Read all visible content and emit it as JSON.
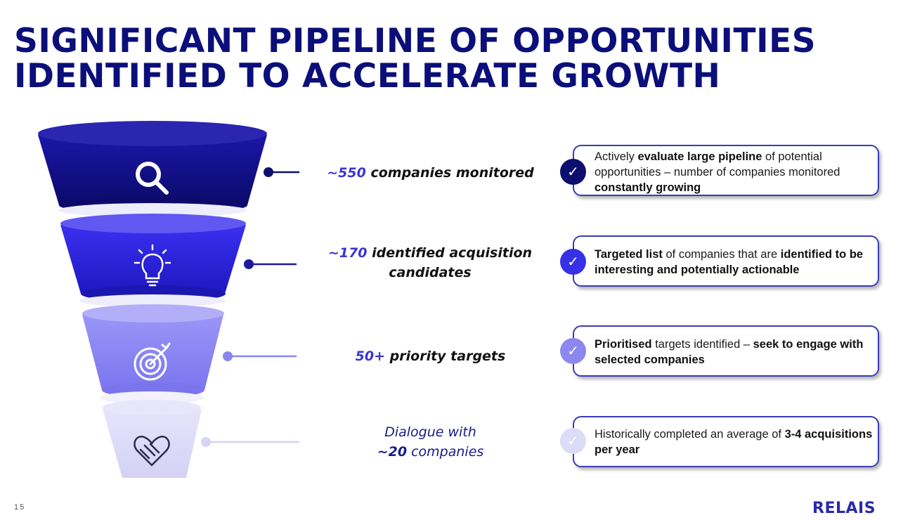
{
  "title": {
    "line1": "SIGNIFICANT PIPELINE OF OPPORTUNITIES",
    "line2": "IDENTIFIED TO ACCELERATE GROWTH"
  },
  "stages": [
    {
      "icon": "search-icon",
      "color": "#16128e",
      "num": "~550",
      "text": " companies monitored"
    },
    {
      "icon": "lightbulb-icon",
      "color": "#2a22d6",
      "num": "~170",
      "text": " identified acquisition candidates"
    },
    {
      "icon": "target-icon",
      "color": "#8a86f4",
      "num": "50+",
      "text": " priority targets"
    },
    {
      "icon": "handshake-heart-icon",
      "color": "#dcdaf8",
      "line1": "Dialogue with",
      "num": "~20",
      "text": " companies"
    }
  ],
  "cards": [
    {
      "check_color": "#0d0f6e",
      "parts": [
        {
          "t": "Actively ",
          "b": false
        },
        {
          "t": "evaluate large pipeline",
          "b": true
        },
        {
          "t": " of potential opportunities – number of companies monitored ",
          "b": false
        },
        {
          "t": "constantly growing",
          "b": true
        }
      ]
    },
    {
      "check_color": "#3630e6",
      "parts": [
        {
          "t": "Targeted list",
          "b": true
        },
        {
          "t": " of companies that are ",
          "b": false
        },
        {
          "t": "identified to be interesting and potentially actionable",
          "b": true
        }
      ]
    },
    {
      "check_color": "#8c88f0",
      "parts": [
        {
          "t": "Prioritised",
          "b": true
        },
        {
          "t": " targets identified – ",
          "b": false
        },
        {
          "t": "seek to engage with selected companies",
          "b": true
        }
      ]
    },
    {
      "check_color": "#dddcf7",
      "parts": [
        {
          "t": "Historically completed an average of ",
          "b": false
        },
        {
          "t": "3-4 acquisitions per year",
          "b": true
        }
      ]
    }
  ],
  "check_glyph": "✓",
  "footer": {
    "page_number": "15",
    "logo": "RELAIS"
  }
}
